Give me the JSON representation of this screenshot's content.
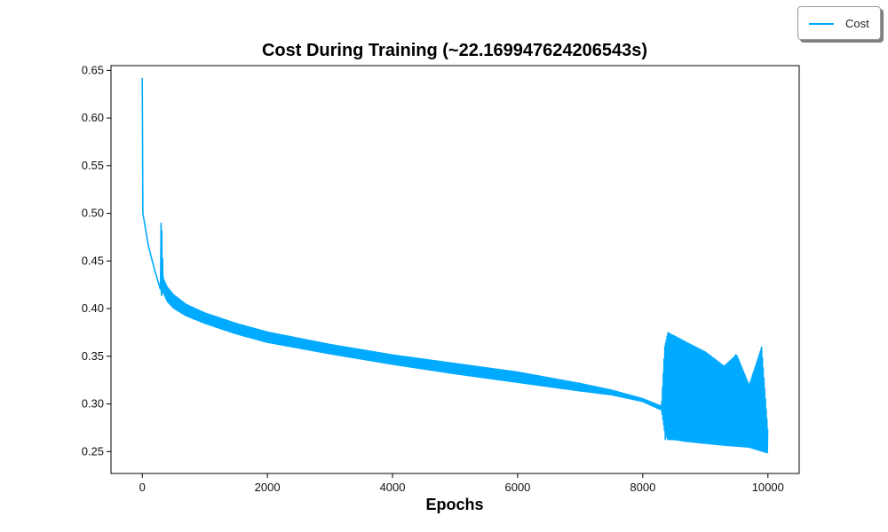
{
  "chart_data": {
    "type": "line",
    "title": "Cost During Training (~22.169947624206543s)",
    "xlabel": "Epochs",
    "ylabel": "",
    "xlim": [
      -500,
      10500
    ],
    "ylim": [
      0.227,
      0.655
    ],
    "xticks": [
      0,
      2000,
      4000,
      6000,
      8000,
      10000
    ],
    "xtick_labels": [
      "0",
      "2000",
      "4000",
      "6000",
      "8000",
      "10000"
    ],
    "yticks": [
      0.25,
      0.3,
      0.35,
      0.4,
      0.45,
      0.5,
      0.55,
      0.6,
      0.65
    ],
    "ytick_labels": [
      "0.25",
      "0.30",
      "0.35",
      "0.40",
      "0.45",
      "0.50",
      "0.55",
      "0.60",
      "0.65"
    ],
    "grid": false,
    "legend": "top-right",
    "series": [
      {
        "name": "Cost",
        "color": "#00aaff",
        "envelope_upper": {
          "x": [
            0,
            10,
            100,
            200,
            290,
            300,
            315,
            330,
            350,
            400,
            500,
            700,
            1000,
            1500,
            2000,
            3000,
            4000,
            5000,
            6000,
            7000,
            7500,
            8000,
            8300,
            8350,
            8400,
            8500,
            8700,
            9000,
            9300,
            9500,
            9700,
            9900,
            10000
          ],
          "y": [
            0.642,
            0.5,
            0.465,
            0.44,
            0.42,
            0.49,
            0.48,
            0.435,
            0.43,
            0.423,
            0.415,
            0.405,
            0.396,
            0.385,
            0.376,
            0.363,
            0.352,
            0.343,
            0.334,
            0.322,
            0.315,
            0.306,
            0.298,
            0.36,
            0.375,
            0.372,
            0.365,
            0.355,
            0.34,
            0.352,
            0.32,
            0.36,
            0.27
          ]
        },
        "envelope_lower": {
          "x": [
            300,
            330,
            350,
            400,
            500,
            700,
            1000,
            1500,
            2000,
            3000,
            4000,
            5000,
            6000,
            7000,
            7500,
            8000,
            8300,
            8350,
            8400,
            8500,
            8700,
            9000,
            9300,
            9500,
            9700,
            9900,
            10000
          ],
          "y": [
            0.412,
            0.418,
            0.414,
            0.407,
            0.4,
            0.392,
            0.384,
            0.373,
            0.364,
            0.352,
            0.341,
            0.331,
            0.322,
            0.313,
            0.309,
            0.302,
            0.293,
            0.27,
            0.262,
            0.262,
            0.26,
            0.258,
            0.256,
            0.255,
            0.254,
            0.25,
            0.248
          ]
        }
      }
    ]
  }
}
